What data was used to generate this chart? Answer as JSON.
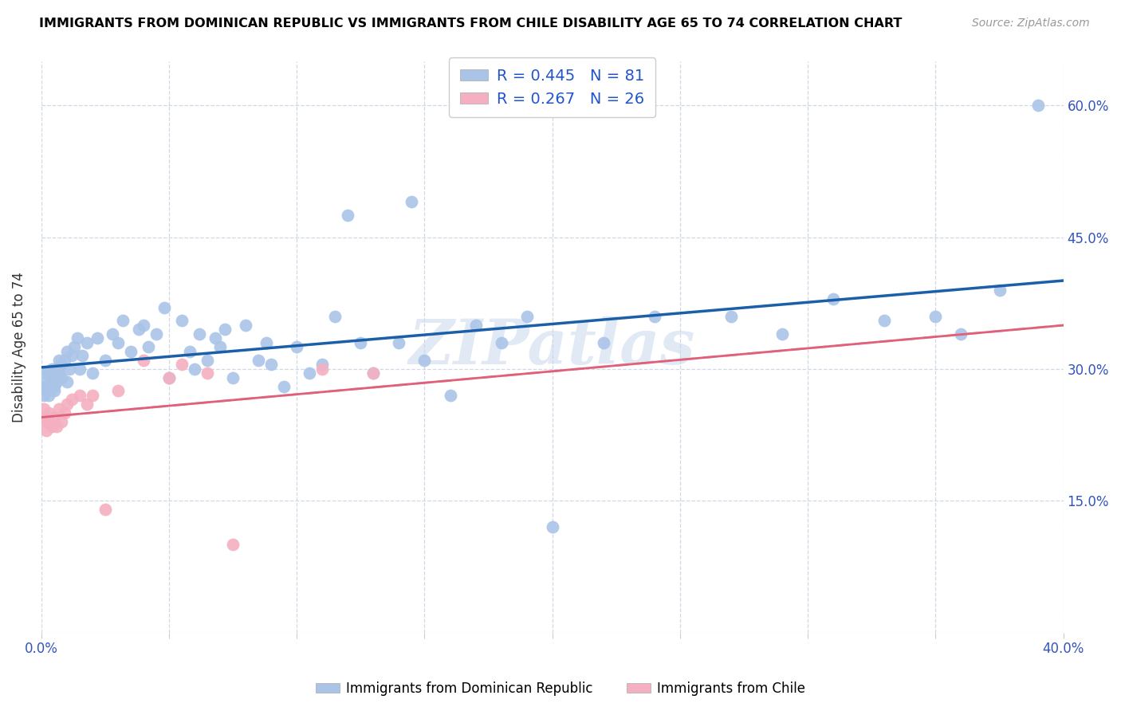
{
  "title": "IMMIGRANTS FROM DOMINICAN REPUBLIC VS IMMIGRANTS FROM CHILE DISABILITY AGE 65 TO 74 CORRELATION CHART",
  "source": "Source: ZipAtlas.com",
  "ylabel": "Disability Age 65 to 74",
  "x_min": 0.0,
  "x_max": 0.4,
  "y_min": 0.0,
  "y_max": 0.65,
  "x_ticks": [
    0.0,
    0.05,
    0.1,
    0.15,
    0.2,
    0.25,
    0.3,
    0.35,
    0.4
  ],
  "y_ticks": [
    0.0,
    0.15,
    0.3,
    0.45,
    0.6
  ],
  "y_tick_labels_right": [
    "",
    "15.0%",
    "30.0%",
    "45.0%",
    "60.0%"
  ],
  "legend_blue_label": "R = 0.445   N = 81",
  "legend_pink_label": "R = 0.267   N = 26",
  "legend_bottom_blue": "Immigrants from Dominican Republic",
  "legend_bottom_pink": "Immigrants from Chile",
  "blue_dot_color": "#aac4e8",
  "pink_dot_color": "#f4b0c0",
  "blue_line_color": "#1a5fa8",
  "pink_line_color": "#e0607a",
  "pink_dash_color": "#e0b0ba",
  "watermark": "ZIPatlas",
  "blue_x": [
    0.001,
    0.001,
    0.002,
    0.002,
    0.002,
    0.003,
    0.003,
    0.003,
    0.004,
    0.004,
    0.005,
    0.005,
    0.005,
    0.006,
    0.006,
    0.007,
    0.007,
    0.008,
    0.008,
    0.009,
    0.01,
    0.01,
    0.011,
    0.012,
    0.013,
    0.014,
    0.015,
    0.016,
    0.018,
    0.02,
    0.022,
    0.025,
    0.028,
    0.03,
    0.032,
    0.035,
    0.038,
    0.04,
    0.042,
    0.045,
    0.048,
    0.05,
    0.055,
    0.058,
    0.06,
    0.062,
    0.065,
    0.068,
    0.07,
    0.072,
    0.075,
    0.08,
    0.085,
    0.088,
    0.09,
    0.095,
    0.1,
    0.105,
    0.11,
    0.115,
    0.12,
    0.125,
    0.13,
    0.14,
    0.145,
    0.15,
    0.16,
    0.17,
    0.18,
    0.19,
    0.2,
    0.22,
    0.24,
    0.27,
    0.29,
    0.31,
    0.33,
    0.35,
    0.36,
    0.375,
    0.39
  ],
  "blue_y": [
    0.27,
    0.28,
    0.275,
    0.285,
    0.295,
    0.27,
    0.28,
    0.295,
    0.285,
    0.3,
    0.275,
    0.28,
    0.295,
    0.285,
    0.3,
    0.295,
    0.31,
    0.29,
    0.305,
    0.31,
    0.32,
    0.285,
    0.3,
    0.315,
    0.325,
    0.335,
    0.3,
    0.315,
    0.33,
    0.295,
    0.335,
    0.31,
    0.34,
    0.33,
    0.355,
    0.32,
    0.345,
    0.35,
    0.325,
    0.34,
    0.37,
    0.29,
    0.355,
    0.32,
    0.3,
    0.34,
    0.31,
    0.335,
    0.325,
    0.345,
    0.29,
    0.35,
    0.31,
    0.33,
    0.305,
    0.28,
    0.325,
    0.295,
    0.305,
    0.36,
    0.475,
    0.33,
    0.295,
    0.33,
    0.49,
    0.31,
    0.27,
    0.35,
    0.33,
    0.36,
    0.12,
    0.33,
    0.36,
    0.36,
    0.34,
    0.38,
    0.355,
    0.36,
    0.34,
    0.39,
    0.6
  ],
  "pink_x": [
    0.001,
    0.001,
    0.002,
    0.002,
    0.003,
    0.003,
    0.004,
    0.005,
    0.006,
    0.007,
    0.008,
    0.009,
    0.01,
    0.012,
    0.015,
    0.018,
    0.02,
    0.025,
    0.03,
    0.04,
    0.05,
    0.055,
    0.065,
    0.075,
    0.11,
    0.13
  ],
  "pink_y": [
    0.245,
    0.255,
    0.23,
    0.24,
    0.24,
    0.25,
    0.235,
    0.245,
    0.235,
    0.255,
    0.24,
    0.25,
    0.26,
    0.265,
    0.27,
    0.26,
    0.27,
    0.14,
    0.275,
    0.31,
    0.29,
    0.305,
    0.295,
    0.1,
    0.3,
    0.295
  ]
}
